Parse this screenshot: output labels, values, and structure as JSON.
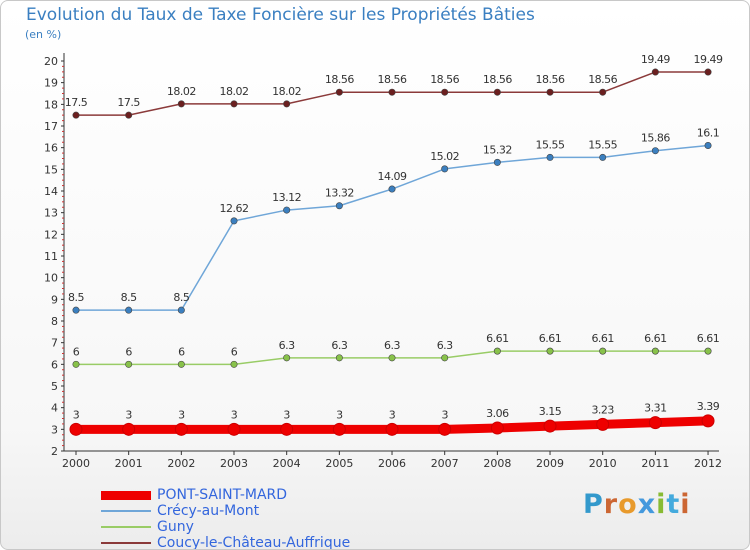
{
  "title": "Evolution du Taux de Taxe Foncière sur les Propriétés Bâties",
  "unit_label": "(en %)",
  "logo": {
    "text": "Proxiti",
    "colors": [
      "#3399cc",
      "#cc6633",
      "#e89a2c",
      "#4499dd",
      "#88bb33",
      "#44aadd",
      "#cc6633"
    ]
  },
  "chart_data": {
    "type": "line",
    "title": "Evolution du Taux de Taxe Foncière sur les Propriétés Bâties",
    "ylabel": "(en %)",
    "xlabel": "",
    "x": [
      "2000",
      "2001",
      "2002",
      "2003",
      "2004",
      "2005",
      "2006",
      "2007",
      "2008",
      "2009",
      "2010",
      "2011",
      "2012"
    ],
    "ylim": [
      2,
      20
    ],
    "yticks": [
      2,
      3,
      4,
      5,
      6,
      7,
      8,
      9,
      10,
      11,
      12,
      13,
      14,
      15,
      16,
      17,
      18,
      19,
      20
    ],
    "grid": false,
    "legend": "bottom-left",
    "series": [
      {
        "name": "PONT-SAINT-MARD",
        "color": "#ee0000",
        "bold": true,
        "values": [
          3,
          3,
          3,
          3,
          3,
          3,
          3,
          3,
          3.06,
          3.15,
          3.23,
          3.31,
          3.39
        ],
        "labels": [
          "3",
          "3",
          "3",
          "3",
          "3",
          "3",
          "3",
          "3",
          "3.06",
          "3.15",
          "3.23",
          "3.31",
          "3.39"
        ]
      },
      {
        "name": "Crécy-au-Mont",
        "color": "#6fa6d8",
        "marker": "#3b7fbf",
        "bold": false,
        "values": [
          8.5,
          8.5,
          8.5,
          12.62,
          13.12,
          13.32,
          14.09,
          15.02,
          15.32,
          15.55,
          15.55,
          15.86,
          16.1
        ],
        "labels": [
          "8.5",
          "8.5",
          "8.5",
          "12.62",
          "13.12",
          "13.32",
          "14.09",
          "15.02",
          "15.32",
          "15.55",
          "15.55",
          "15.86",
          "16.1"
        ]
      },
      {
        "name": "Guny",
        "color": "#99cc66",
        "marker": "#88c24a",
        "bold": false,
        "values": [
          6,
          6,
          6,
          6,
          6.3,
          6.3,
          6.3,
          6.3,
          6.61,
          6.61,
          6.61,
          6.61,
          6.61
        ],
        "labels": [
          "6",
          "6",
          "6",
          "6",
          "6.3",
          "6.3",
          "6.3",
          "6.3",
          "6.61",
          "6.61",
          "6.61",
          "6.61",
          "6.61"
        ]
      },
      {
        "name": "Coucy-le-Château-Auffrique",
        "color": "#8b3a3a",
        "marker": "#6b1f1f",
        "bold": false,
        "values": [
          17.5,
          17.5,
          18.02,
          18.02,
          18.02,
          18.56,
          18.56,
          18.56,
          18.56,
          18.56,
          18.56,
          19.49,
          19.49
        ],
        "labels": [
          "17.5",
          "17.5",
          "18.02",
          "18.02",
          "18.02",
          "18.56",
          "18.56",
          "18.56",
          "18.56",
          "18.56",
          "18.56",
          "19.49",
          "19.49"
        ]
      }
    ]
  },
  "legend": {
    "items": [
      {
        "label": "PONT-SAINT-MARD",
        "color": "#ee0000",
        "bold": true
      },
      {
        "label": "Crécy-au-Mont",
        "color": "#6fa6d8",
        "bold": false
      },
      {
        "label": "Guny",
        "color": "#99cc66",
        "bold": false
      },
      {
        "label": "Coucy-le-Château-Auffrique",
        "color": "#8b3a3a",
        "bold": false
      }
    ]
  }
}
